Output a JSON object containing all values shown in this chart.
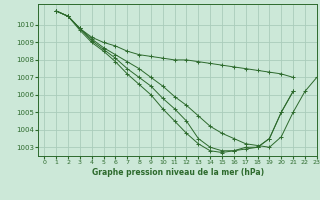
{
  "background_color": "#cce8d8",
  "grid_color": "#aaccbb",
  "line_color": "#2d6a2d",
  "marker": "+",
  "title": "Graphe pression niveau de la mer (hPa)",
  "xlim": [
    -0.5,
    23
  ],
  "ylim": [
    1002.5,
    1011.2
  ],
  "yticks": [
    1003,
    1004,
    1005,
    1006,
    1007,
    1008,
    1009,
    1010
  ],
  "xticks": [
    0,
    1,
    2,
    3,
    4,
    5,
    6,
    7,
    8,
    9,
    10,
    11,
    12,
    13,
    14,
    15,
    16,
    17,
    18,
    19,
    20,
    21,
    22,
    23
  ],
  "series": [
    [
      null,
      1010.8,
      1010.5,
      1009.8,
      1009.3,
      1009.0,
      1008.8,
      1008.5,
      1008.3,
      1008.2,
      1008.1,
      1008.0,
      1008.0,
      1007.9,
      1007.8,
      1007.7,
      1007.6,
      1007.5,
      1007.4,
      1007.3,
      1007.2,
      1007.0,
      null,
      null
    ],
    [
      null,
      1010.8,
      1010.5,
      1009.8,
      1009.2,
      1008.7,
      1008.3,
      1007.9,
      1007.5,
      1007.0,
      1006.5,
      1005.9,
      1005.4,
      1004.8,
      1004.2,
      1003.8,
      1003.5,
      1003.2,
      1003.1,
      1003.0,
      1003.6,
      1005.0,
      1006.2,
      1007.0
    ],
    [
      null,
      1010.8,
      1010.5,
      1009.8,
      1009.1,
      1008.6,
      1008.1,
      1007.5,
      1007.0,
      1006.5,
      1005.8,
      1005.2,
      1004.5,
      1003.5,
      1003.0,
      1002.8,
      1002.8,
      1002.9,
      1003.0,
      1003.5,
      1005.0,
      1006.2,
      null,
      null
    ],
    [
      null,
      1010.8,
      1010.5,
      1009.7,
      1009.0,
      1008.5,
      1007.9,
      1007.2,
      1006.6,
      1006.0,
      1005.2,
      1004.5,
      1003.8,
      1003.2,
      1002.8,
      1002.7,
      1002.8,
      1003.0,
      1003.0,
      1003.5,
      1005.0,
      1006.2,
      null,
      null
    ]
  ]
}
